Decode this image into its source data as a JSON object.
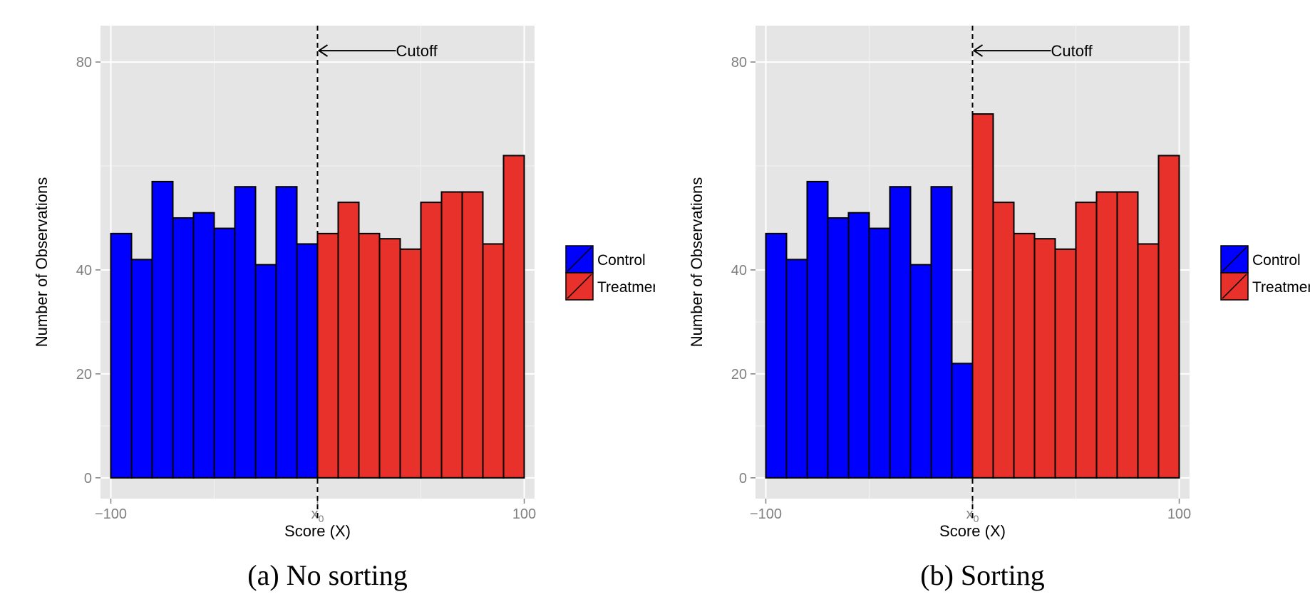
{
  "chart_data": [
    {
      "type": "bar",
      "caption": "(a) No sorting",
      "xlabel": "Score (X)",
      "ylabel": "Number of Observations",
      "xlim": [
        -105,
        105
      ],
      "ylim": [
        -4,
        87
      ],
      "x_ticks": [
        {
          "value": -100,
          "label": "−100"
        },
        {
          "value": 0,
          "label": "x",
          "subscript": "0"
        },
        {
          "value": 100,
          "label": "100"
        }
      ],
      "y_ticks": [
        0,
        20,
        40,
        80
      ],
      "grid": true,
      "bin_width": 10,
      "series": [
        {
          "name": "Control",
          "color": "#0000ff",
          "bin_starts": [
            -100,
            -90,
            -80,
            -70,
            -60,
            -50,
            -40,
            -30,
            -20,
            -10
          ],
          "values": [
            47,
            42,
            57,
            50,
            51,
            48,
            56,
            41,
            56,
            45
          ]
        },
        {
          "name": "Treatment",
          "color": "#e8312a",
          "bin_starts": [
            0,
            10,
            20,
            30,
            40,
            50,
            60,
            70,
            80,
            90
          ],
          "values": [
            47,
            53,
            47,
            46,
            44,
            53,
            55,
            55,
            45,
            62
          ]
        }
      ],
      "cutoff": {
        "x": 0,
        "label": "Cutoff",
        "style": "dashed"
      },
      "legend_position": "right",
      "legend_entries": [
        "Control",
        "Treatmen"
      ]
    },
    {
      "type": "bar",
      "caption": "(b) Sorting",
      "xlabel": "Score (X)",
      "ylabel": "Number of Observations",
      "xlim": [
        -105,
        105
      ],
      "ylim": [
        -4,
        87
      ],
      "x_ticks": [
        {
          "value": -100,
          "label": "−100"
        },
        {
          "value": 0,
          "label": "x",
          "subscript": "0"
        },
        {
          "value": 100,
          "label": "100"
        }
      ],
      "y_ticks": [
        0,
        20,
        40,
        80
      ],
      "grid": true,
      "bin_width": 10,
      "series": [
        {
          "name": "Control",
          "color": "#0000ff",
          "bin_starts": [
            -100,
            -90,
            -80,
            -70,
            -60,
            -50,
            -40,
            -30,
            -20,
            -10
          ],
          "values": [
            47,
            42,
            57,
            50,
            51,
            48,
            56,
            41,
            56,
            22
          ]
        },
        {
          "name": "Treatment",
          "color": "#e8312a",
          "bin_starts": [
            0,
            10,
            20,
            30,
            40,
            50,
            60,
            70,
            80,
            90
          ],
          "values": [
            70,
            53,
            47,
            46,
            44,
            53,
            55,
            55,
            45,
            62
          ]
        }
      ],
      "cutoff": {
        "x": 0,
        "label": "Cutoff",
        "style": "dashed"
      },
      "legend_position": "right",
      "legend_entries": [
        "Control",
        "Treatment"
      ]
    }
  ]
}
